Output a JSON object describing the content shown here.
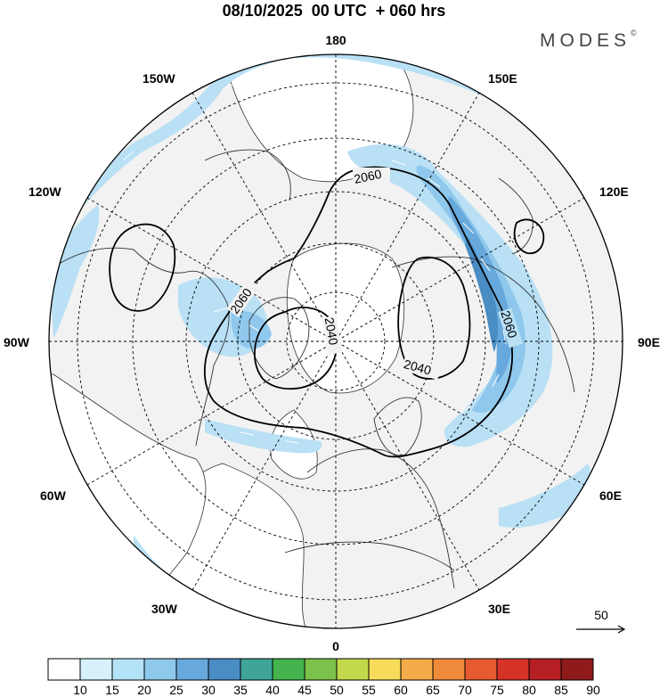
{
  "title": "08/10/2025  00 UTC  + 060 hrs",
  "brand": "MODES",
  "brand_mark": "©",
  "longitude_labels": {
    "top": "180",
    "bottom": "0",
    "left": "90W",
    "right": "90E",
    "lon150W": "150W",
    "lon120W": "120W",
    "lon60W": "60W",
    "lon30W": "30W",
    "lon150E": "150E",
    "lon120E": "120E",
    "lon60E": "60E",
    "lon30E": "30E"
  },
  "contour_labels": {
    "c2060_north": "2060",
    "c2060_west": "2060",
    "c2060_east": "2060",
    "c2040_center": "2040",
    "c2040_east": "2040"
  },
  "wind_reference": "50",
  "colorbar": {
    "labels": [
      "10",
      "15",
      "20",
      "25",
      "30",
      "35",
      "40",
      "45",
      "50",
      "55",
      "60",
      "65",
      "70",
      "75",
      "80",
      "85",
      "90"
    ],
    "colors": [
      "#ffffff",
      "#d6f1fb",
      "#b4e2f6",
      "#8ec9ec",
      "#67a9dc",
      "#4a8cc4",
      "#3fa59a",
      "#45b34e",
      "#7cc24a",
      "#c2d94c",
      "#f6dc5a",
      "#f4ac4a",
      "#ef8a3a",
      "#e65a32",
      "#d63328",
      "#b51f24",
      "#8e1a1a"
    ]
  },
  "colors": {
    "land": "#f2f2f2",
    "ocean": "#ffffff",
    "jet_light": "#b9e0f5",
    "jet_mid": "#8fc8ec",
    "jet_strong": "#67a9dc",
    "jet_core": "#4a8cc4"
  }
}
